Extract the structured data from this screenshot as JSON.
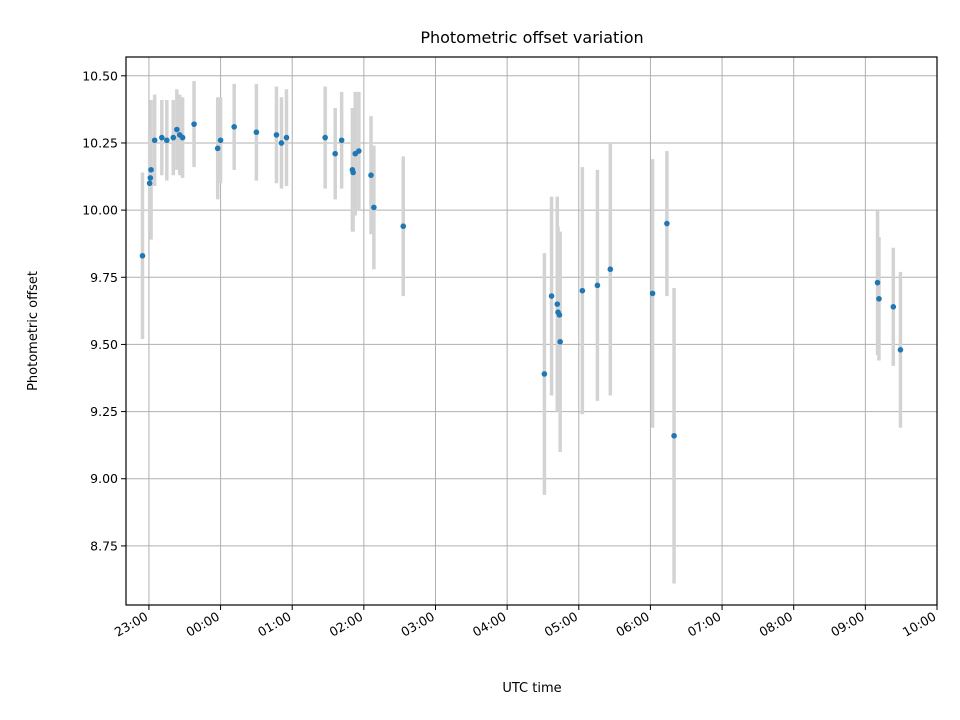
{
  "chart_data": {
    "type": "scatter",
    "title": "Photometric offset variation",
    "xlabel": "UTC time",
    "ylabel": "Photometric offset",
    "grid": true,
    "xlim": [
      -1.32,
      10.0
    ],
    "ylim": [
      8.53,
      10.57
    ],
    "x_tick_values": [
      -1,
      0,
      1,
      2,
      3,
      4,
      5,
      6,
      7,
      8,
      9,
      10
    ],
    "x_tick_labels": [
      "23:00",
      "00:00",
      "01:00",
      "02:00",
      "03:00",
      "04:00",
      "05:00",
      "06:00",
      "07:00",
      "08:00",
      "09:00",
      "10:00"
    ],
    "y_tick_values": [
      8.75,
      9.0,
      9.25,
      9.5,
      9.75,
      10.0,
      10.25,
      10.5
    ],
    "y_tick_labels": [
      "8.75",
      "9.00",
      "9.25",
      "9.50",
      "9.75",
      "10.00",
      "10.25",
      "10.50"
    ],
    "series": [
      {
        "name": "offset",
        "color": "#1f77b4",
        "errorbar_color": "#d3d3d3",
        "x": [
          -1.09,
          -0.99,
          -0.98,
          -0.97,
          -0.92,
          -0.82,
          -0.75,
          -0.66,
          -0.61,
          -0.57,
          -0.53,
          -0.37,
          -0.04,
          0.0,
          0.19,
          0.5,
          0.78,
          0.85,
          0.92,
          1.46,
          1.6,
          1.69,
          1.84,
          1.85,
          1.88,
          1.93,
          2.1,
          2.14,
          2.55,
          4.52,
          4.62,
          4.7,
          4.71,
          4.73,
          4.74,
          5.05,
          5.26,
          5.44,
          6.03,
          6.23,
          6.33,
          9.17,
          9.19,
          9.39,
          9.49
        ],
        "y": [
          9.83,
          10.1,
          10.12,
          10.15,
          10.26,
          10.27,
          10.26,
          10.27,
          10.3,
          10.28,
          10.27,
          10.32,
          10.23,
          10.26,
          10.31,
          10.29,
          10.28,
          10.25,
          10.27,
          10.27,
          10.21,
          10.26,
          10.15,
          10.14,
          10.21,
          10.22,
          10.13,
          10.01,
          9.94,
          9.39,
          9.68,
          9.65,
          9.62,
          9.61,
          9.51,
          9.7,
          9.72,
          9.78,
          9.69,
          9.95,
          9.16,
          9.73,
          9.67,
          9.64,
          9.48
        ],
        "error": [
          0.31,
          0.18,
          0.16,
          0.26,
          0.17,
          0.14,
          0.15,
          0.14,
          0.15,
          0.15,
          0.15,
          0.16,
          0.19,
          0.16,
          0.16,
          0.18,
          0.18,
          0.17,
          0.18,
          0.19,
          0.17,
          0.18,
          0.23,
          0.22,
          0.23,
          0.22,
          0.22,
          0.23,
          0.26,
          0.45,
          0.37,
          0.4,
          0.32,
          0.3,
          0.41,
          0.46,
          0.43,
          0.47,
          0.5,
          0.27,
          0.55,
          0.27,
          0.23,
          0.22,
          0.29
        ]
      }
    ]
  }
}
